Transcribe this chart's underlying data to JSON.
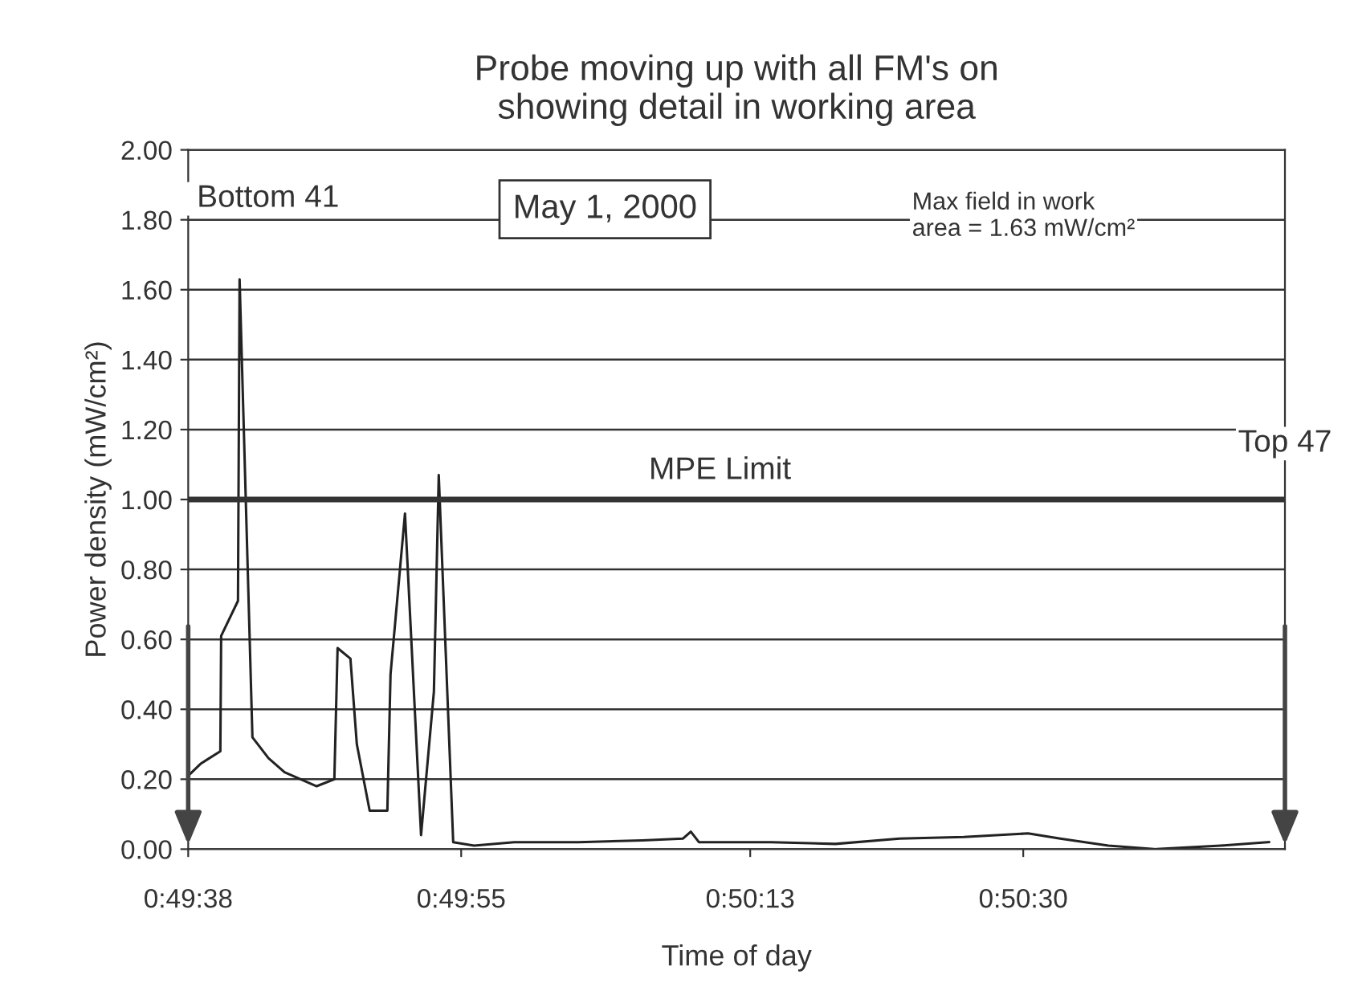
{
  "chart_data": {
    "type": "line",
    "title": "Probe moving up with all FM's on\nshowing detail in working area",
    "xlabel": "Time of day",
    "ylabel": "Power density (mW/cm²)",
    "x": [
      0.827222,
      0.827444,
      0.827778,
      0.827792,
      0.828083,
      0.828111,
      0.828333,
      0.828611,
      0.828889,
      0.829167,
      0.829444,
      0.82975,
      0.829806,
      0.830028,
      0.830139,
      0.830361,
      0.830667,
      0.830722,
      0.830972,
      0.83125,
      0.831472,
      0.831556,
      0.831806,
      0.832167,
      0.832861,
      0.833972,
      0.835083,
      0.835778,
      0.835917,
      0.836056,
      0.837306,
      0.838417,
      0.839528,
      0.840639,
      0.84175,
      0.842306,
      0.843139,
      0.843972,
      0.845083,
      0.845917
    ],
    "series": [
      {
        "color": "#222222",
        "values": [
          0.21,
          0.245,
          0.28,
          0.61,
          0.71,
          1.63,
          0.32,
          0.26,
          0.22,
          0.2,
          0.18,
          0.2,
          0.575,
          0.545,
          0.3,
          0.11,
          0.11,
          0.5,
          0.96,
          0.04,
          0.45,
          1.07,
          0.02,
          0.01,
          0.02,
          0.02,
          0.025,
          0.03,
          0.05,
          0.02,
          0.02,
          0.015,
          0.03,
          0.035,
          0.045,
          0.03,
          0.01,
          0.0,
          0.01,
          0.02
        ]
      }
    ],
    "xlim": [
      0.827222,
      0.846194
    ],
    "xticks": [
      {
        "value": 0.827222,
        "label": "0:49:38"
      },
      {
        "value": 0.831944,
        "label": "0:49:55"
      },
      {
        "value": 0.836944,
        "label": "0:50:13"
      },
      {
        "value": 0.841667,
        "label": "0:50:30"
      }
    ],
    "ylim": [
      0,
      2
    ],
    "yticks": [
      {
        "value": 0,
        "label": "0.00"
      },
      {
        "value": 0.2,
        "label": "0.20"
      },
      {
        "value": 0.4,
        "label": "0.40"
      },
      {
        "value": 0.6,
        "label": "0.60"
      },
      {
        "value": 0.8,
        "label": "0.80"
      },
      {
        "value": 1.0,
        "label": "1.00"
      },
      {
        "value": 1.2,
        "label": "1.20"
      },
      {
        "value": 1.4,
        "label": "1.40"
      },
      {
        "value": 1.6,
        "label": "1.60"
      },
      {
        "value": 1.8,
        "label": "1.80"
      },
      {
        "value": 2.0,
        "label": "2.00"
      }
    ],
    "grid": "y",
    "marker": "none",
    "line_style": "solid",
    "legend": false,
    "ref_lines": [
      {
        "axis": "y",
        "value": 1.0,
        "label": "MPE Limit",
        "color": "#333333"
      }
    ],
    "annotations": [
      "Bottom 41",
      "Top 47",
      "May 1, 2000",
      "Max field in work\narea = 1.63 mW/cm²"
    ]
  }
}
